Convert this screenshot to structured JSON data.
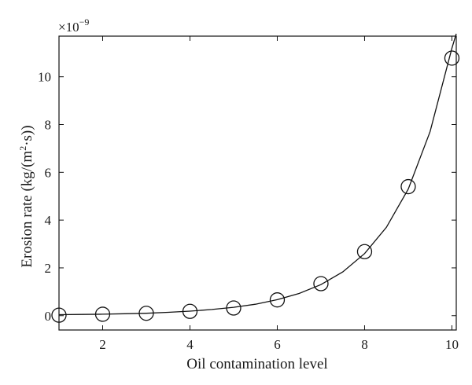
{
  "chart_data": {
    "type": "scatter",
    "title": "",
    "xlabel": "Oil contamination level",
    "ylabel_main": "Erosion rate (kg/(m",
    "ylabel_sup": "2",
    "ylabel_tail": "·s))",
    "y_multiplier_base": "×10",
    "y_multiplier_exp": "−9",
    "xlim": [
      1,
      10.1
    ],
    "ylim": [
      -0.6,
      11.7
    ],
    "x_ticks": [
      2,
      4,
      6,
      8,
      10
    ],
    "y_ticks": [
      0,
      2,
      4,
      6,
      8,
      10
    ],
    "grid": false,
    "series": [
      {
        "marker": "open-circle",
        "x": [
          1,
          2,
          3,
          4,
          5,
          6,
          7,
          8,
          9,
          10
        ],
        "y": [
          0.02,
          0.06,
          0.1,
          0.18,
          0.32,
          0.66,
          1.34,
          2.68,
          5.4,
          10.78
        ]
      }
    ],
    "fit_curve": {
      "style": "solid line",
      "model": "exponential",
      "equation_hidden": true,
      "x": [
        1,
        1.5,
        2,
        2.5,
        3,
        3.5,
        4,
        4.5,
        5,
        5.5,
        6,
        6.5,
        7,
        7.5,
        8,
        8.5,
        9,
        9.5,
        10,
        10.1
      ],
      "y": [
        0.04,
        0.05,
        0.06,
        0.08,
        0.1,
        0.14,
        0.19,
        0.26,
        0.35,
        0.48,
        0.67,
        0.93,
        1.3,
        1.83,
        2.6,
        3.7,
        5.3,
        7.7,
        11.2,
        11.8
      ]
    }
  }
}
